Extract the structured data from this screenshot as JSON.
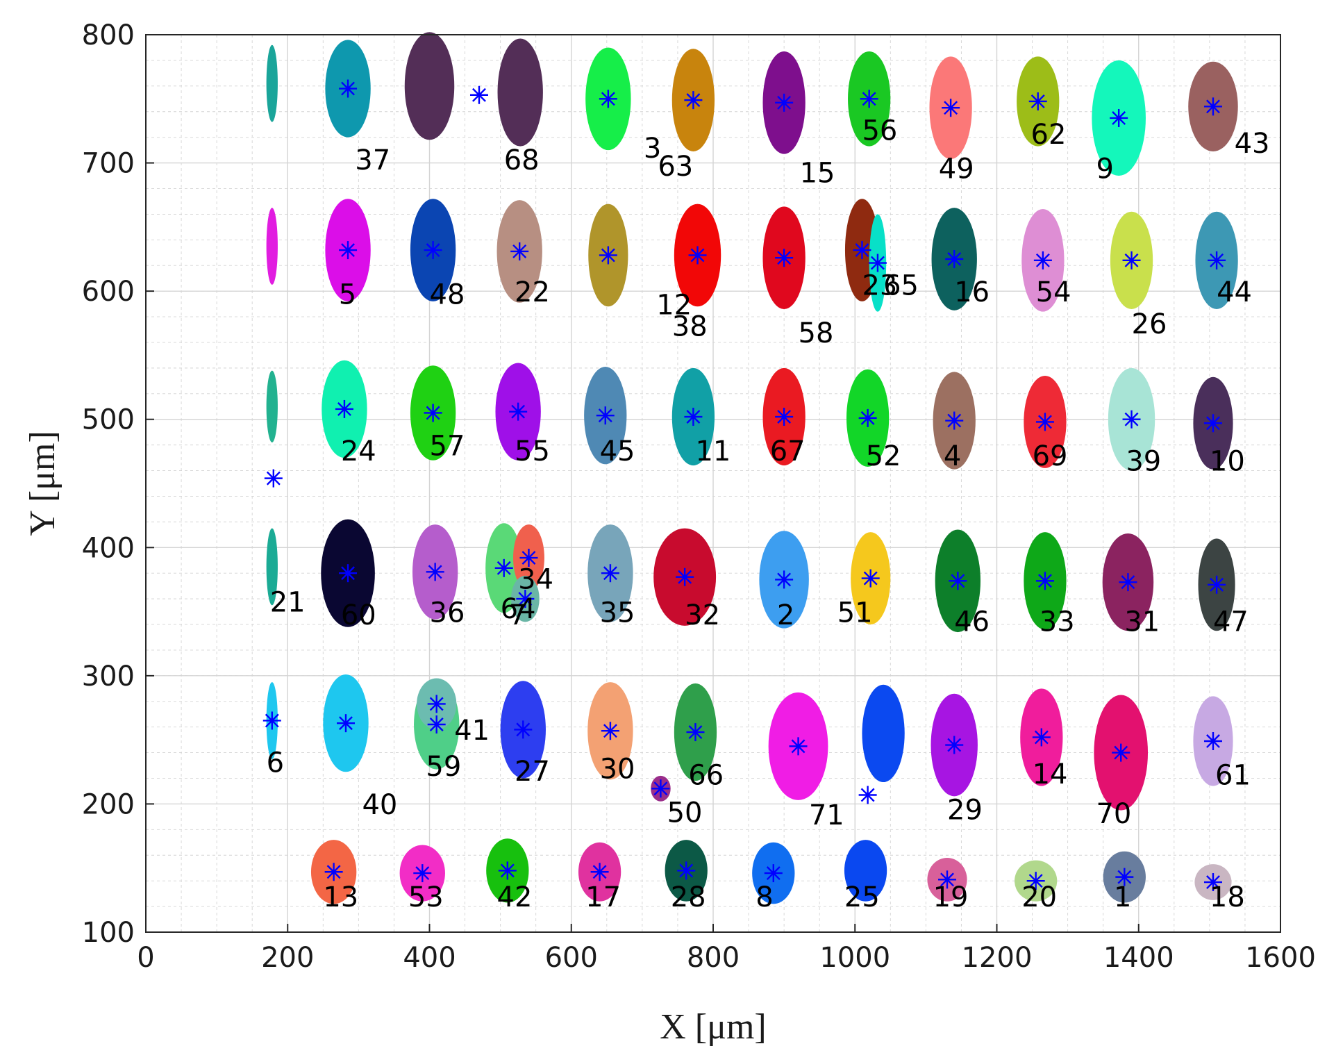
{
  "chart_data": {
    "type": "scatter",
    "title": "",
    "xlabel": "X [μm]",
    "ylabel": "Y [μm]",
    "xlim": [
      0,
      1600
    ],
    "ylim": [
      100,
      800
    ],
    "xticks": [
      0,
      200,
      400,
      600,
      800,
      1000,
      1200,
      1400,
      1600
    ],
    "yticks": [
      100,
      200,
      300,
      400,
      500,
      600,
      700,
      800
    ],
    "grid": true,
    "minor_grid": true,
    "centroid_marker": "asterisk",
    "centroid_color": "#0000ff",
    "clusters": [
      {
        "id": "37",
        "x": 285,
        "y": 758,
        "rx": 32,
        "ry": 38,
        "color": "#0e98ae",
        "label": "37",
        "lx": 295,
        "ly": 695,
        "marker": true
      },
      {
        "id": "68",
        "x": 400,
        "y": 760,
        "rx": 35,
        "ry": 42,
        "color": "#532e57",
        "label": "68",
        "lx": 505,
        "ly": 695,
        "marker": false
      },
      {
        "id": "68b",
        "x": 528,
        "y": 755,
        "rx": 32,
        "ry": 42,
        "color": "#532e57",
        "label": "",
        "lx": 0,
        "ly": 0,
        "marker": false
      },
      {
        "id": "3",
        "x": 0,
        "y": 0,
        "rx": 0,
        "ry": 0,
        "color": "#ffffff",
        "label": "3",
        "lx": 702,
        "ly": 704,
        "marker": false
      },
      {
        "id": "63",
        "x": 0,
        "y": 0,
        "rx": 0,
        "ry": 0,
        "color": "#ffffff",
        "label": "63",
        "lx": 722,
        "ly": 690,
        "marker": false
      },
      {
        "id": "v63",
        "x": 652,
        "y": 750,
        "rx": 32,
        "ry": 40,
        "color": "#16ee49",
        "label": "",
        "lx": 0,
        "ly": 0,
        "marker": true
      },
      {
        "id": "v63b",
        "x": 772,
        "y": 749,
        "rx": 30,
        "ry": 40,
        "color": "#c8840d",
        "label": "",
        "lx": 0,
        "ly": 0,
        "marker": true
      },
      {
        "id": "15",
        "x": 900,
        "y": 747,
        "rx": 30,
        "ry": 40,
        "color": "#7e0f8d",
        "label": "15",
        "lx": 922,
        "ly": 685,
        "marker": true
      },
      {
        "id": "56",
        "x": 1020,
        "y": 750,
        "rx": 30,
        "ry": 37,
        "color": "#1ac823",
        "label": "56",
        "lx": 1010,
        "ly": 718,
        "marker": true
      },
      {
        "id": "49",
        "x": 1135,
        "y": 743,
        "rx": 30,
        "ry": 40,
        "color": "#fb7878",
        "label": "49",
        "lx": 1118,
        "ly": 688,
        "marker": true
      },
      {
        "id": "62",
        "x": 1258,
        "y": 748,
        "rx": 30,
        "ry": 35,
        "color": "#9dbd18",
        "label": "62",
        "lx": 1248,
        "ly": 715,
        "marker": true
      },
      {
        "id": "9",
        "x": 1372,
        "y": 735,
        "rx": 38,
        "ry": 45,
        "color": "#14f7bb",
        "label": "9",
        "lx": 1340,
        "ly": 688,
        "marker": true
      },
      {
        "id": "43",
        "x": 1505,
        "y": 744,
        "rx": 35,
        "ry": 35,
        "color": "#9a6160",
        "label": "43",
        "lx": 1535,
        "ly": 708,
        "marker": true
      },
      {
        "id": "5",
        "x": 285,
        "y": 632,
        "rx": 32,
        "ry": 40,
        "color": "#db0ee8",
        "label": "5",
        "lx": 272,
        "ly": 590,
        "marker": true
      },
      {
        "id": "48",
        "x": 405,
        "y": 632,
        "rx": 32,
        "ry": 40,
        "color": "#0b45b2",
        "label": "48",
        "lx": 400,
        "ly": 590,
        "marker": true
      },
      {
        "id": "22",
        "x": 527,
        "y": 631,
        "rx": 32,
        "ry": 40,
        "color": "#b78f82",
        "label": "22",
        "lx": 520,
        "ly": 592,
        "marker": true
      },
      {
        "id": "12",
        "x": 652,
        "y": 628,
        "rx": 28,
        "ry": 40,
        "color": "#b0952b",
        "label": "12",
        "lx": 720,
        "ly": 582,
        "marker": true
      },
      {
        "id": "38",
        "x": 778,
        "y": 628,
        "rx": 33,
        "ry": 40,
        "color": "#f20707",
        "label": "38",
        "lx": 742,
        "ly": 565,
        "marker": true
      },
      {
        "id": "58",
        "x": 900,
        "y": 626,
        "rx": 30,
        "ry": 40,
        "color": "#e0081e",
        "label": "58",
        "lx": 920,
        "ly": 560,
        "marker": true
      },
      {
        "id": "23",
        "x": 1010,
        "y": 632,
        "rx": 24,
        "ry": 40,
        "color": "#8f2a10",
        "label": "23",
        "lx": 1010,
        "ly": 597,
        "marker": true
      },
      {
        "id": "65",
        "x": 1032,
        "y": 622,
        "rx": 12,
        "ry": 38,
        "color": "#08e0c8",
        "label": "65",
        "lx": 1040,
        "ly": 597,
        "marker": true
      },
      {
        "id": "16",
        "x": 1140,
        "y": 625,
        "rx": 32,
        "ry": 40,
        "color": "#0d615e",
        "label": "16",
        "lx": 1140,
        "ly": 592,
        "marker": true
      },
      {
        "id": "54",
        "x": 1265,
        "y": 624,
        "rx": 30,
        "ry": 40,
        "color": "#de8ed4",
        "label": "54",
        "lx": 1255,
        "ly": 592,
        "marker": true
      },
      {
        "id": "26",
        "x": 1390,
        "y": 624,
        "rx": 30,
        "ry": 38,
        "color": "#c9e04c",
        "label": "26",
        "lx": 1390,
        "ly": 567,
        "marker": true
      },
      {
        "id": "44",
        "x": 1510,
        "y": 624,
        "rx": 30,
        "ry": 38,
        "color": "#3d98b4",
        "label": "44",
        "lx": 1510,
        "ly": 592,
        "marker": true
      },
      {
        "id": "24",
        "x": 280,
        "y": 508,
        "rx": 32,
        "ry": 38,
        "color": "#10f0b0",
        "label": "24",
        "lx": 275,
        "ly": 468,
        "marker": true
      },
      {
        "id": "57",
        "x": 405,
        "y": 505,
        "rx": 32,
        "ry": 37,
        "color": "#1fd113",
        "label": "57",
        "lx": 400,
        "ly": 472,
        "marker": true
      },
      {
        "id": "55",
        "x": 525,
        "y": 506,
        "rx": 32,
        "ry": 38,
        "color": "#9f10e8",
        "label": "55",
        "lx": 520,
        "ly": 468,
        "marker": true
      },
      {
        "id": "45",
        "x": 648,
        "y": 503,
        "rx": 30,
        "ry": 38,
        "color": "#4f89b4",
        "label": "45",
        "lx": 640,
        "ly": 468,
        "marker": true
      },
      {
        "id": "11",
        "x": 772,
        "y": 502,
        "rx": 30,
        "ry": 38,
        "color": "#11a0a6",
        "label": "11",
        "lx": 775,
        "ly": 468,
        "marker": true
      },
      {
        "id": "67",
        "x": 900,
        "y": 502,
        "rx": 30,
        "ry": 38,
        "color": "#ea1a22",
        "label": "67",
        "lx": 880,
        "ly": 468,
        "marker": true
      },
      {
        "id": "52",
        "x": 1018,
        "y": 501,
        "rx": 30,
        "ry": 38,
        "color": "#12d628",
        "label": "52",
        "lx": 1015,
        "ly": 464,
        "marker": true
      },
      {
        "id": "4",
        "x": 1140,
        "y": 499,
        "rx": 30,
        "ry": 38,
        "color": "#9c7061",
        "label": "4",
        "lx": 1125,
        "ly": 464,
        "marker": true
      },
      {
        "id": "69",
        "x": 1268,
        "y": 498,
        "rx": 30,
        "ry": 36,
        "color": "#ee2a36",
        "label": "69",
        "lx": 1250,
        "ly": 464,
        "marker": true
      },
      {
        "id": "39",
        "x": 1390,
        "y": 500,
        "rx": 33,
        "ry": 40,
        "color": "#a8e4d6",
        "label": "39",
        "lx": 1382,
        "ly": 460,
        "marker": true
      },
      {
        "id": "10",
        "x": 1505,
        "y": 497,
        "rx": 28,
        "ry": 36,
        "color": "#4a2f5b",
        "label": "10",
        "lx": 1500,
        "ly": 460,
        "marker": true
      },
      {
        "id": "21",
        "x": 178,
        "y": 385,
        "rx": 8,
        "ry": 30,
        "color": "#1bab95",
        "label": "21",
        "lx": 175,
        "ly": 350,
        "marker": false
      },
      {
        "id": "60",
        "x": 285,
        "y": 380,
        "rx": 38,
        "ry": 42,
        "color": "#0a0732",
        "label": "60",
        "lx": 275,
        "ly": 340,
        "marker": true
      },
      {
        "id": "36",
        "x": 408,
        "y": 381,
        "rx": 32,
        "ry": 37,
        "color": "#b55dcc",
        "label": "36",
        "lx": 400,
        "ly": 342,
        "marker": true
      },
      {
        "id": "64",
        "x": 505,
        "y": 384,
        "rx": 26,
        "ry": 35,
        "color": "#5ad977",
        "label": "64",
        "lx": 500,
        "ly": 345,
        "marker": true
      },
      {
        "id": "34",
        "x": 540,
        "y": 392,
        "rx": 22,
        "ry": 26,
        "color": "#f0604d",
        "label": "34",
        "lx": 525,
        "ly": 368,
        "marker": true
      },
      {
        "id": "7",
        "x": 535,
        "y": 360,
        "rx": 20,
        "ry": 18,
        "color": "#6ab6a6",
        "label": "7",
        "lx": 512,
        "ly": 340,
        "marker": true
      },
      {
        "id": "35",
        "x": 655,
        "y": 380,
        "rx": 32,
        "ry": 38,
        "color": "#78a5ba",
        "label": "35",
        "lx": 640,
        "ly": 342,
        "marker": true
      },
      {
        "id": "32",
        "x": 760,
        "y": 377,
        "rx": 44,
        "ry": 38,
        "color": "#c80b2e",
        "label": "32",
        "lx": 760,
        "ly": 340,
        "marker": true
      },
      {
        "id": "2",
        "x": 900,
        "y": 375,
        "rx": 35,
        "ry": 38,
        "color": "#3d9ef0",
        "label": "2",
        "lx": 890,
        "ly": 340,
        "marker": true
      },
      {
        "id": "51",
        "x": 1022,
        "y": 376,
        "rx": 28,
        "ry": 36,
        "color": "#f5c81d",
        "label": "51",
        "lx": 975,
        "ly": 342,
        "marker": true
      },
      {
        "id": "46",
        "x": 1145,
        "y": 374,
        "rx": 32,
        "ry": 40,
        "color": "#0d7f2a",
        "label": "46",
        "lx": 1140,
        "ly": 335,
        "marker": true
      },
      {
        "id": "33",
        "x": 1268,
        "y": 374,
        "rx": 30,
        "ry": 38,
        "color": "#0ea818",
        "label": "33",
        "lx": 1260,
        "ly": 335,
        "marker": true
      },
      {
        "id": "31",
        "x": 1385,
        "y": 373,
        "rx": 36,
        "ry": 38,
        "color": "#8b2360",
        "label": "31",
        "lx": 1380,
        "ly": 335,
        "marker": true
      },
      {
        "id": "47",
        "x": 1510,
        "y": 371,
        "rx": 26,
        "ry": 36,
        "color": "#3c4443",
        "label": "47",
        "lx": 1505,
        "ly": 335,
        "marker": true
      },
      {
        "id": "6",
        "x": 178,
        "y": 265,
        "rx": 8,
        "ry": 30,
        "color": "#1ec7ef",
        "label": "6",
        "lx": 170,
        "ly": 225,
        "marker": true
      },
      {
        "id": "40",
        "x": 282,
        "y": 263,
        "rx": 32,
        "ry": 38,
        "color": "#1ec7ef",
        "label": "40",
        "lx": 305,
        "ly": 192,
        "marker": true
      },
      {
        "id": "59",
        "x": 410,
        "y": 262,
        "rx": 32,
        "ry": 35,
        "color": "#4fcf88",
        "label": "59",
        "lx": 395,
        "ly": 222,
        "marker": true
      },
      {
        "id": "41",
        "x": 410,
        "y": 278,
        "rx": 28,
        "ry": 20,
        "color": "#6cbcb0",
        "label": "41",
        "lx": 435,
        "ly": 250,
        "marker": true
      },
      {
        "id": "27",
        "x": 532,
        "y": 258,
        "rx": 32,
        "ry": 38,
        "color": "#2d3ef0",
        "label": "27",
        "lx": 520,
        "ly": 218,
        "marker": true
      },
      {
        "id": "30",
        "x": 655,
        "y": 257,
        "rx": 32,
        "ry": 38,
        "color": "#f3a173",
        "label": "30",
        "lx": 640,
        "ly": 220,
        "marker": true
      },
      {
        "id": "66",
        "x": 775,
        "y": 256,
        "rx": 30,
        "ry": 38,
        "color": "#2f9f4b",
        "label": "66",
        "lx": 765,
        "ly": 215,
        "marker": true
      },
      {
        "id": "50",
        "x": 726,
        "y": 212,
        "rx": 14,
        "ry": 10,
        "color": "#9a2e8a",
        "label": "50",
        "lx": 735,
        "ly": 186,
        "marker": true
      },
      {
        "id": "71",
        "x": 920,
        "y": 245,
        "rx": 42,
        "ry": 42,
        "color": "#f01de5",
        "label": "71",
        "lx": 935,
        "ly": 184,
        "marker": true
      },
      {
        "id": "v71",
        "x": 1040,
        "y": 255,
        "rx": 30,
        "ry": 38,
        "color": "#0b49f0",
        "label": "",
        "lx": 0,
        "ly": 0,
        "marker": false
      },
      {
        "id": "29",
        "x": 1140,
        "y": 246,
        "rx": 33,
        "ry": 40,
        "color": "#a715e2",
        "label": "29",
        "lx": 1130,
        "ly": 188,
        "marker": true
      },
      {
        "id": "14",
        "x": 1263,
        "y": 252,
        "rx": 30,
        "ry": 38,
        "color": "#f01d9c",
        "label": "14",
        "lx": 1250,
        "ly": 216,
        "marker": true
      },
      {
        "id": "70",
        "x": 1375,
        "y": 240,
        "rx": 38,
        "ry": 45,
        "color": "#e3116f",
        "label": "70",
        "lx": 1340,
        "ly": 185,
        "marker": true
      },
      {
        "id": "61",
        "x": 1505,
        "y": 249,
        "rx": 28,
        "ry": 35,
        "color": "#c7a9e3",
        "label": "61",
        "lx": 1508,
        "ly": 215,
        "marker": true
      },
      {
        "id": "13",
        "x": 265,
        "y": 147,
        "rx": 32,
        "ry": 25,
        "color": "#f36645",
        "label": "13",
        "lx": 250,
        "ly": 120,
        "marker": true
      },
      {
        "id": "53",
        "x": 390,
        "y": 146,
        "rx": 32,
        "ry": 22,
        "color": "#f22dc6",
        "label": "53",
        "lx": 370,
        "ly": 120,
        "marker": true
      },
      {
        "id": "42",
        "x": 510,
        "y": 148,
        "rx": 30,
        "ry": 25,
        "color": "#17c00e",
        "label": "42",
        "lx": 495,
        "ly": 120,
        "marker": true
      },
      {
        "id": "17",
        "x": 640,
        "y": 147,
        "rx": 30,
        "ry": 23,
        "color": "#e0329f",
        "label": "17",
        "lx": 620,
        "ly": 120,
        "marker": true
      },
      {
        "id": "28",
        "x": 762,
        "y": 148,
        "rx": 30,
        "ry": 24,
        "color": "#0c5946",
        "label": "28",
        "lx": 740,
        "ly": 120,
        "marker": true
      },
      {
        "id": "8",
        "x": 885,
        "y": 146,
        "rx": 30,
        "ry": 24,
        "color": "#106ef0",
        "label": "8",
        "lx": 860,
        "ly": 120,
        "marker": true
      },
      {
        "id": "25",
        "x": 1015,
        "y": 148,
        "rx": 30,
        "ry": 24,
        "color": "#0a48f0",
        "label": "25",
        "lx": 985,
        "ly": 120,
        "marker": false
      },
      {
        "id": "19",
        "x": 1130,
        "y": 141,
        "rx": 28,
        "ry": 17,
        "color": "#d8609a",
        "label": "19",
        "lx": 1110,
        "ly": 120,
        "marker": true
      },
      {
        "id": "20",
        "x": 1255,
        "y": 140,
        "rx": 30,
        "ry": 16,
        "color": "#b1d88c",
        "label": "20",
        "lx": 1235,
        "ly": 120,
        "marker": true
      },
      {
        "id": "1",
        "x": 1380,
        "y": 143,
        "rx": 30,
        "ry": 20,
        "color": "#687d9e",
        "label": "1",
        "lx": 1365,
        "ly": 120,
        "marker": true
      },
      {
        "id": "18",
        "x": 1505,
        "y": 139,
        "rx": 26,
        "ry": 14,
        "color": "#c9b6c2",
        "label": "18",
        "lx": 1500,
        "ly": 120,
        "marker": true
      }
    ],
    "extra_markers": [
      {
        "x": 470,
        "y": 753
      },
      {
        "x": 180,
        "y": 454
      },
      {
        "x": 1018,
        "y": 207
      }
    ],
    "edge_slivers": [
      {
        "x": 178,
        "y": 762,
        "rx": 8,
        "ry": 30,
        "color": "#1aa59a"
      },
      {
        "x": 178,
        "y": 635,
        "rx": 8,
        "ry": 30,
        "color": "#e11de0"
      },
      {
        "x": 178,
        "y": 510,
        "rx": 8,
        "ry": 28,
        "color": "#22b290"
      }
    ]
  }
}
